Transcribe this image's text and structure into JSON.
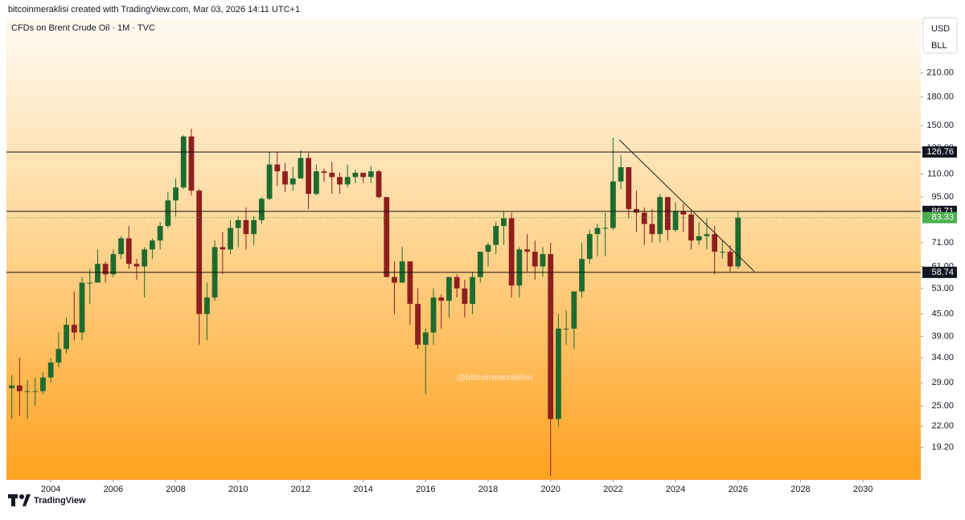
{
  "header": {
    "text": "bitcoinmeraklisi created with TradingView.com, Mar 03, 2026 14:11 UTC+1"
  },
  "footer": {
    "brand": "TradingView"
  },
  "chart_data": {
    "type": "candlestick",
    "title": "CFDs on Brent Crude Oil · 1M · TVC",
    "currency": "USD",
    "unit": "BLL",
    "watermark": "@bitcoinmeraklisi",
    "log_scale": true,
    "grid": false,
    "up_color": "#1e6b2e",
    "down_color": "#8e1f1f",
    "level_color": "#111111",
    "last_color": "#4caf50",
    "trend_color": "#222222",
    "xlim": [
      2002.58,
      2031.85
    ],
    "xticks": [
      2004,
      2006,
      2008,
      2010,
      2012,
      2014,
      2016,
      2018,
      2020,
      2022,
      2024,
      2026,
      2028,
      2030
    ],
    "ylim": [
      15.6,
      299
    ],
    "yticks": [
      {
        "value": 19.2,
        "label": "19.20"
      },
      {
        "value": 22,
        "label": "22.00"
      },
      {
        "value": 25,
        "label": "25.00"
      },
      {
        "value": 29,
        "label": "29.00"
      },
      {
        "value": 34,
        "label": "34.00"
      },
      {
        "value": 39,
        "label": "39.00"
      },
      {
        "value": 45,
        "label": "45.00"
      },
      {
        "value": 53,
        "label": "53.00"
      },
      {
        "value": 61,
        "label": "61.00"
      },
      {
        "value": 71,
        "label": "71.00"
      },
      {
        "value": 95,
        "label": "95.00"
      },
      {
        "value": 110,
        "label": "110.00"
      },
      {
        "value": 130,
        "label": "130.00"
      },
      {
        "value": 150,
        "label": "150.00"
      },
      {
        "value": 180,
        "label": "180.00"
      },
      {
        "value": 210,
        "label": "210.00"
      }
    ],
    "levels": [
      126.76,
      86.71,
      58.74
    ],
    "last_price": 83.33,
    "trendline": {
      "x": [
        2022.2,
        2026.52
      ],
      "y": [
        137,
        59.1
      ]
    },
    "x": [
      2002.75,
      2003,
      2003.25,
      2003.5,
      2003.75,
      2004,
      2004.25,
      2004.5,
      2004.75,
      2005,
      2005.25,
      2005.5,
      2005.75,
      2006,
      2006.25,
      2006.5,
      2006.75,
      2007,
      2007.25,
      2007.5,
      2007.75,
      2008,
      2008.25,
      2008.5,
      2008.75,
      2009,
      2009.25,
      2009.5,
      2009.75,
      2010,
      2010.25,
      2010.5,
      2010.75,
      2011,
      2011.25,
      2011.5,
      2011.75,
      2012,
      2012.25,
      2012.5,
      2012.75,
      2013,
      2013.25,
      2013.5,
      2013.75,
      2014,
      2014.25,
      2014.5,
      2014.75,
      2015,
      2015.25,
      2015.5,
      2015.75,
      2016,
      2016.25,
      2016.5,
      2016.75,
      2017,
      2017.25,
      2017.5,
      2017.75,
      2018,
      2018.25,
      2018.5,
      2018.75,
      2019,
      2019.25,
      2019.5,
      2019.75,
      2020,
      2020.25,
      2020.5,
      2020.75,
      2021,
      2021.25,
      2021.5,
      2021.75,
      2022,
      2022.25,
      2022.5,
      2022.75,
      2023,
      2023.25,
      2023.5,
      2023.75,
      2024,
      2024.25,
      2024.5,
      2024.75,
      2025,
      2025.25,
      2025.5,
      2025.75,
      2026
    ],
    "open": [
      28,
      28.5,
      27.5,
      27.5,
      27.5,
      30,
      33,
      36,
      42,
      40,
      55,
      55,
      62,
      58,
      66,
      73,
      62,
      61,
      68,
      72,
      79,
      93,
      101,
      140,
      99,
      45,
      50,
      69,
      68,
      78,
      82,
      75,
      82,
      94,
      117,
      112,
      103,
      107,
      122,
      97,
      112,
      111,
      108,
      103,
      108,
      111,
      108,
      112,
      95,
      57,
      55,
      63,
      48,
      37,
      40,
      50,
      49,
      57,
      53,
      48,
      57,
      67,
      70,
      79,
      83,
      54,
      68,
      67,
      61,
      66,
      23,
      41,
      41,
      52,
      64,
      75,
      78,
      78,
      105,
      115,
      88,
      86,
      80,
      75,
      95,
      77,
      87,
      85,
      72,
      74,
      75,
      67,
      67,
      61
    ],
    "high": [
      30.5,
      34,
      29.5,
      30,
      31,
      34,
      40,
      44,
      52,
      57,
      60,
      68,
      63,
      68,
      74,
      79,
      64,
      69,
      73,
      81,
      98,
      107,
      141,
      147,
      100,
      55,
      72,
      76,
      82,
      84,
      89,
      84,
      95,
      127,
      127,
      118,
      115,
      128,
      126,
      117,
      114,
      119,
      111,
      117,
      113,
      111,
      116,
      113,
      95,
      63,
      69,
      63,
      53,
      41,
      53,
      51,
      57,
      58,
      56,
      59,
      67,
      71,
      81,
      87,
      86,
      69,
      75,
      72,
      69,
      71,
      45,
      46,
      52,
      71,
      77,
      80,
      86,
      139,
      124,
      115,
      99,
      89,
      88,
      97,
      95,
      92,
      91,
      87,
      81,
      83,
      79,
      72,
      70,
      87
    ],
    "low": [
      23,
      23.5,
      23,
      25,
      27,
      29,
      32,
      35,
      38,
      38,
      48,
      55,
      55,
      57,
      64,
      60,
      56,
      50,
      64,
      68,
      78,
      84,
      100,
      96,
      37,
      38,
      49,
      58,
      66,
      69,
      68,
      70,
      80,
      93,
      102,
      98,
      99,
      107,
      88,
      96,
      105,
      97,
      97,
      101,
      104,
      104,
      104,
      94,
      57,
      45,
      55,
      42,
      36,
      27,
      37,
      41,
      44,
      50,
      44,
      45,
      55,
      61,
      66,
      70,
      50,
      50,
      59,
      56,
      57,
      16,
      22,
      37,
      36,
      50,
      62,
      65,
      65,
      77,
      100,
      83,
      76,
      70,
      71,
      71,
      72,
      76,
      76,
      68,
      70,
      68,
      58,
      64,
      59,
      60
    ],
    "close": [
      28.5,
      27.5,
      27.5,
      27.5,
      30,
      33,
      36,
      42,
      40,
      55,
      55,
      62,
      58,
      66,
      73,
      62,
      61,
      68,
      72,
      79,
      93,
      101,
      140,
      99,
      45,
      50,
      69,
      68,
      78,
      82,
      75,
      82,
      94,
      117,
      112,
      103,
      107,
      122,
      97,
      112,
      111,
      108,
      103,
      108,
      111,
      108,
      112,
      95,
      57,
      55,
      63,
      48,
      37,
      40,
      50,
      49,
      57,
      53,
      48,
      57,
      67,
      70,
      79,
      83,
      54,
      68,
      67,
      61,
      66,
      23,
      41,
      41,
      52,
      64,
      75,
      78,
      78,
      105,
      115,
      88,
      86,
      80,
      75,
      95,
      77,
      87,
      85,
      72,
      74,
      75,
      67,
      67,
      61,
      83.33
    ]
  }
}
